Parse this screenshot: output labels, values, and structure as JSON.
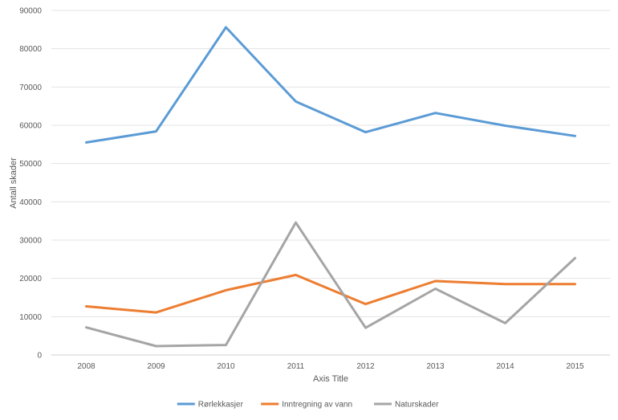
{
  "chart_data": {
    "type": "line",
    "categories": [
      "2008",
      "2009",
      "2010",
      "2011",
      "2012",
      "2013",
      "2014",
      "2015"
    ],
    "series": [
      {
        "name": "Rørlekkasjer",
        "color": "#5b9bd5",
        "values": [
          55500,
          58400,
          85600,
          66200,
          58200,
          63200,
          59900,
          57200
        ]
      },
      {
        "name": "Inntregning av vann",
        "color": "#ed7d31",
        "values": [
          12700,
          11100,
          16900,
          20900,
          13300,
          19300,
          18500,
          18500
        ]
      },
      {
        "name": "Naturskader",
        "color": "#a5a5a5",
        "values": [
          7200,
          2300,
          2600,
          34600,
          7100,
          17300,
          8300,
          25300
        ]
      }
    ],
    "xlabel": "Axis Title",
    "ylabel": "Antall skader",
    "ylim": [
      0,
      90000
    ],
    "yticks": [
      "0",
      "10000",
      "20000",
      "30000",
      "40000",
      "50000",
      "60000",
      "70000",
      "80000",
      "90000"
    ],
    "grid": true,
    "legend": "bottom"
  }
}
